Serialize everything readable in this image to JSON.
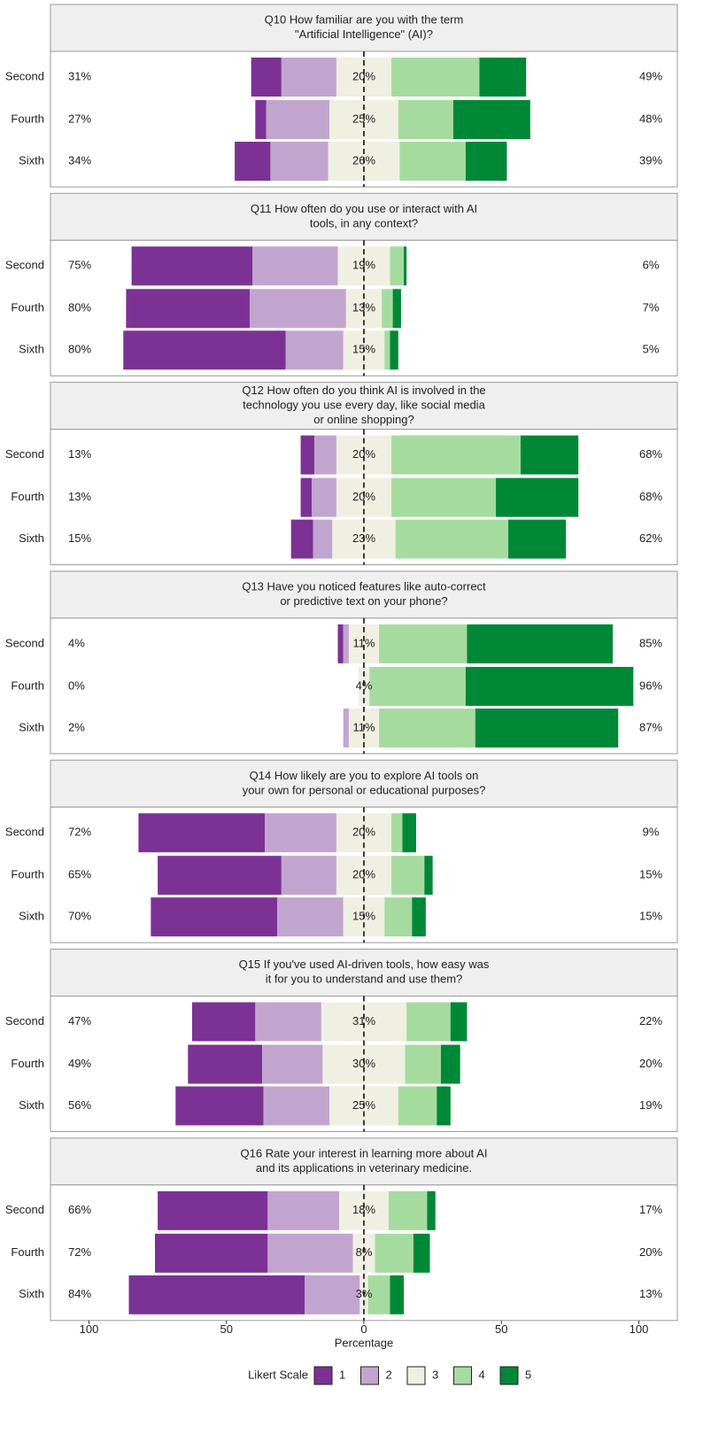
{
  "chart_data": {
    "type": "diverging_bar",
    "levels": [
      {
        "name": "1",
        "color": "#7b3294"
      },
      {
        "name": "2",
        "color": "#c2a5cf"
      },
      {
        "name": "3",
        "color": "#efefe2"
      },
      {
        "name": "4",
        "color": "#a6dba0"
      },
      {
        "name": "5",
        "color": "#008837"
      }
    ],
    "xlabel": "Percentage",
    "legend_title": "Likert Scale",
    "xlim": [
      -114,
      114
    ],
    "xticks": [
      {
        "value": -100,
        "label": "100"
      },
      {
        "value": -50,
        "label": "50"
      },
      0,
      50,
      100
    ],
    "panels": [
      {
        "title": [
          "Q10 How familiar are you with the term",
          "\"Artificial Intelligence\" (AI)?"
        ],
        "categories": [
          "Second",
          "Fourth",
          "Sixth"
        ],
        "values": [
          [
            11,
            20,
            20,
            32,
            17
          ],
          [
            4,
            23,
            25,
            20,
            28
          ],
          [
            13,
            21,
            26,
            24,
            15
          ]
        ],
        "low_labels": [
          "31%",
          "27%",
          "34%"
        ],
        "neutral_labels": [
          "20%",
          "25%",
          "26%"
        ],
        "high_labels": [
          "49%",
          "48%",
          "39%"
        ]
      },
      {
        "title": [
          "Q11 How often do you use or interact with AI",
          "tools, in any context?"
        ],
        "categories": [
          "Second",
          "Fourth",
          "Sixth"
        ],
        "values": [
          [
            44,
            31,
            19,
            5,
            1
          ],
          [
            45,
            35,
            13,
            4,
            3
          ],
          [
            59,
            21,
            15,
            2,
            3
          ]
        ],
        "low_labels": [
          "75%",
          "80%",
          "80%"
        ],
        "neutral_labels": [
          "19%",
          "13%",
          "15%"
        ],
        "high_labels": [
          "6%",
          "7%",
          "5%"
        ]
      },
      {
        "title": [
          "Q12 How often do you think AI is involved in the",
          "technology you use every day, like social media",
          "or online shopping?"
        ],
        "categories": [
          "Second",
          "Fourth",
          "Sixth"
        ],
        "values": [
          [
            5,
            8,
            20,
            47,
            21
          ],
          [
            4,
            9,
            20,
            38,
            30
          ],
          [
            8,
            7,
            23,
            41,
            21
          ]
        ],
        "low_labels": [
          "13%",
          "13%",
          "15%"
        ],
        "neutral_labels": [
          "20%",
          "20%",
          "23%"
        ],
        "high_labels": [
          "68%",
          "68%",
          "62%"
        ]
      },
      {
        "title": [
          "Q13 Have you noticed features like auto-correct",
          "or predictive text on your phone?"
        ],
        "categories": [
          "Second",
          "Fourth",
          "Sixth"
        ],
        "values": [
          [
            2,
            2,
            11,
            32,
            53
          ],
          [
            0,
            0,
            4,
            35,
            61
          ],
          [
            0,
            2,
            11,
            35,
            52
          ]
        ],
        "low_labels": [
          "4%",
          "0%",
          "2%"
        ],
        "neutral_labels": [
          "11%",
          "4%",
          "11%"
        ],
        "high_labels": [
          "85%",
          "96%",
          "87%"
        ]
      },
      {
        "title": [
          "Q14 How likely are you to explore AI tools on",
          "your own for personal or educational purposes?"
        ],
        "categories": [
          "Second",
          "Fourth",
          "Sixth"
        ],
        "values": [
          [
            46,
            26,
            20,
            4,
            5
          ],
          [
            45,
            20,
            20,
            12,
            3
          ],
          [
            46,
            24,
            15,
            10,
            5
          ]
        ],
        "low_labels": [
          "72%",
          "65%",
          "70%"
        ],
        "neutral_labels": [
          "20%",
          "20%",
          "15%"
        ],
        "high_labels": [
          "9%",
          "15%",
          "15%"
        ]
      },
      {
        "title": [
          "Q15 If you've used AI-driven tools, how easy was",
          "it for you to understand and use them?"
        ],
        "categories": [
          "Second",
          "Fourth",
          "Sixth"
        ],
        "values": [
          [
            23,
            24,
            31,
            16,
            6
          ],
          [
            27,
            22,
            30,
            13,
            7
          ],
          [
            32,
            24,
            25,
            14,
            5
          ]
        ],
        "low_labels": [
          "47%",
          "49%",
          "56%"
        ],
        "neutral_labels": [
          "31%",
          "30%",
          "25%"
        ],
        "high_labels": [
          "22%",
          "20%",
          "19%"
        ]
      },
      {
        "title": [
          "Q16 Rate your interest in learning more about AI",
          "and its applications in veterinary medicine."
        ],
        "categories": [
          "Second",
          "Fourth",
          "Sixth"
        ],
        "values": [
          [
            40,
            26,
            18,
            14,
            3
          ],
          [
            41,
            31,
            8,
            14,
            6
          ],
          [
            64,
            20,
            3,
            8,
            5
          ]
        ],
        "low_labels": [
          "66%",
          "72%",
          "84%"
        ],
        "neutral_labels": [
          "18%",
          "8%",
          "3%"
        ],
        "high_labels": [
          "17%",
          "20%",
          "13%"
        ]
      }
    ]
  }
}
